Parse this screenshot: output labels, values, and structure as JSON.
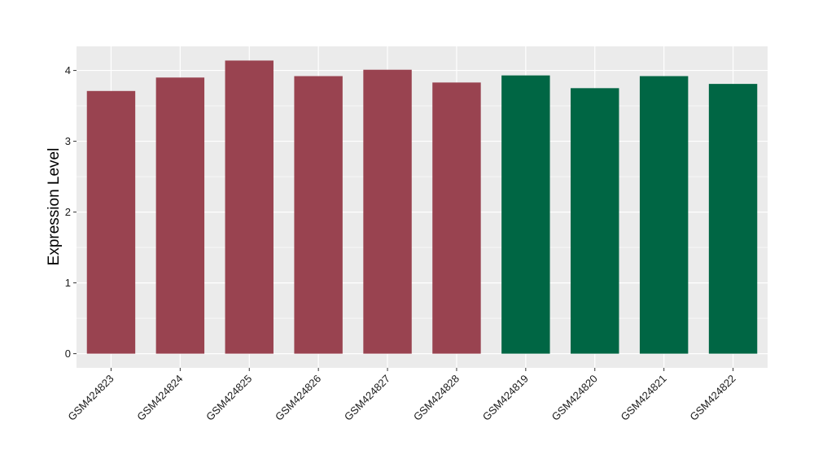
{
  "chart_data": {
    "type": "bar",
    "ylabel": "Expression Level",
    "xlabel": "",
    "categories": [
      "GSM424823",
      "GSM424824",
      "GSM424825",
      "GSM424826",
      "GSM424827",
      "GSM424828",
      "GSM424819",
      "GSM424820",
      "GSM424821",
      "GSM424822"
    ],
    "values": [
      3.71,
      3.9,
      4.14,
      3.92,
      4.01,
      3.83,
      3.93,
      3.75,
      3.92,
      3.81
    ],
    "bar_colors": [
      "#994350",
      "#994350",
      "#994350",
      "#994350",
      "#994350",
      "#994350",
      "#006644",
      "#006644",
      "#006644",
      "#006644"
    ],
    "y_ticks": [
      0,
      1,
      2,
      3,
      4
    ],
    "ylim": [
      -0.2,
      4.34
    ],
    "grid": true,
    "panel_background": "#ebebeb",
    "legend": "none"
  }
}
